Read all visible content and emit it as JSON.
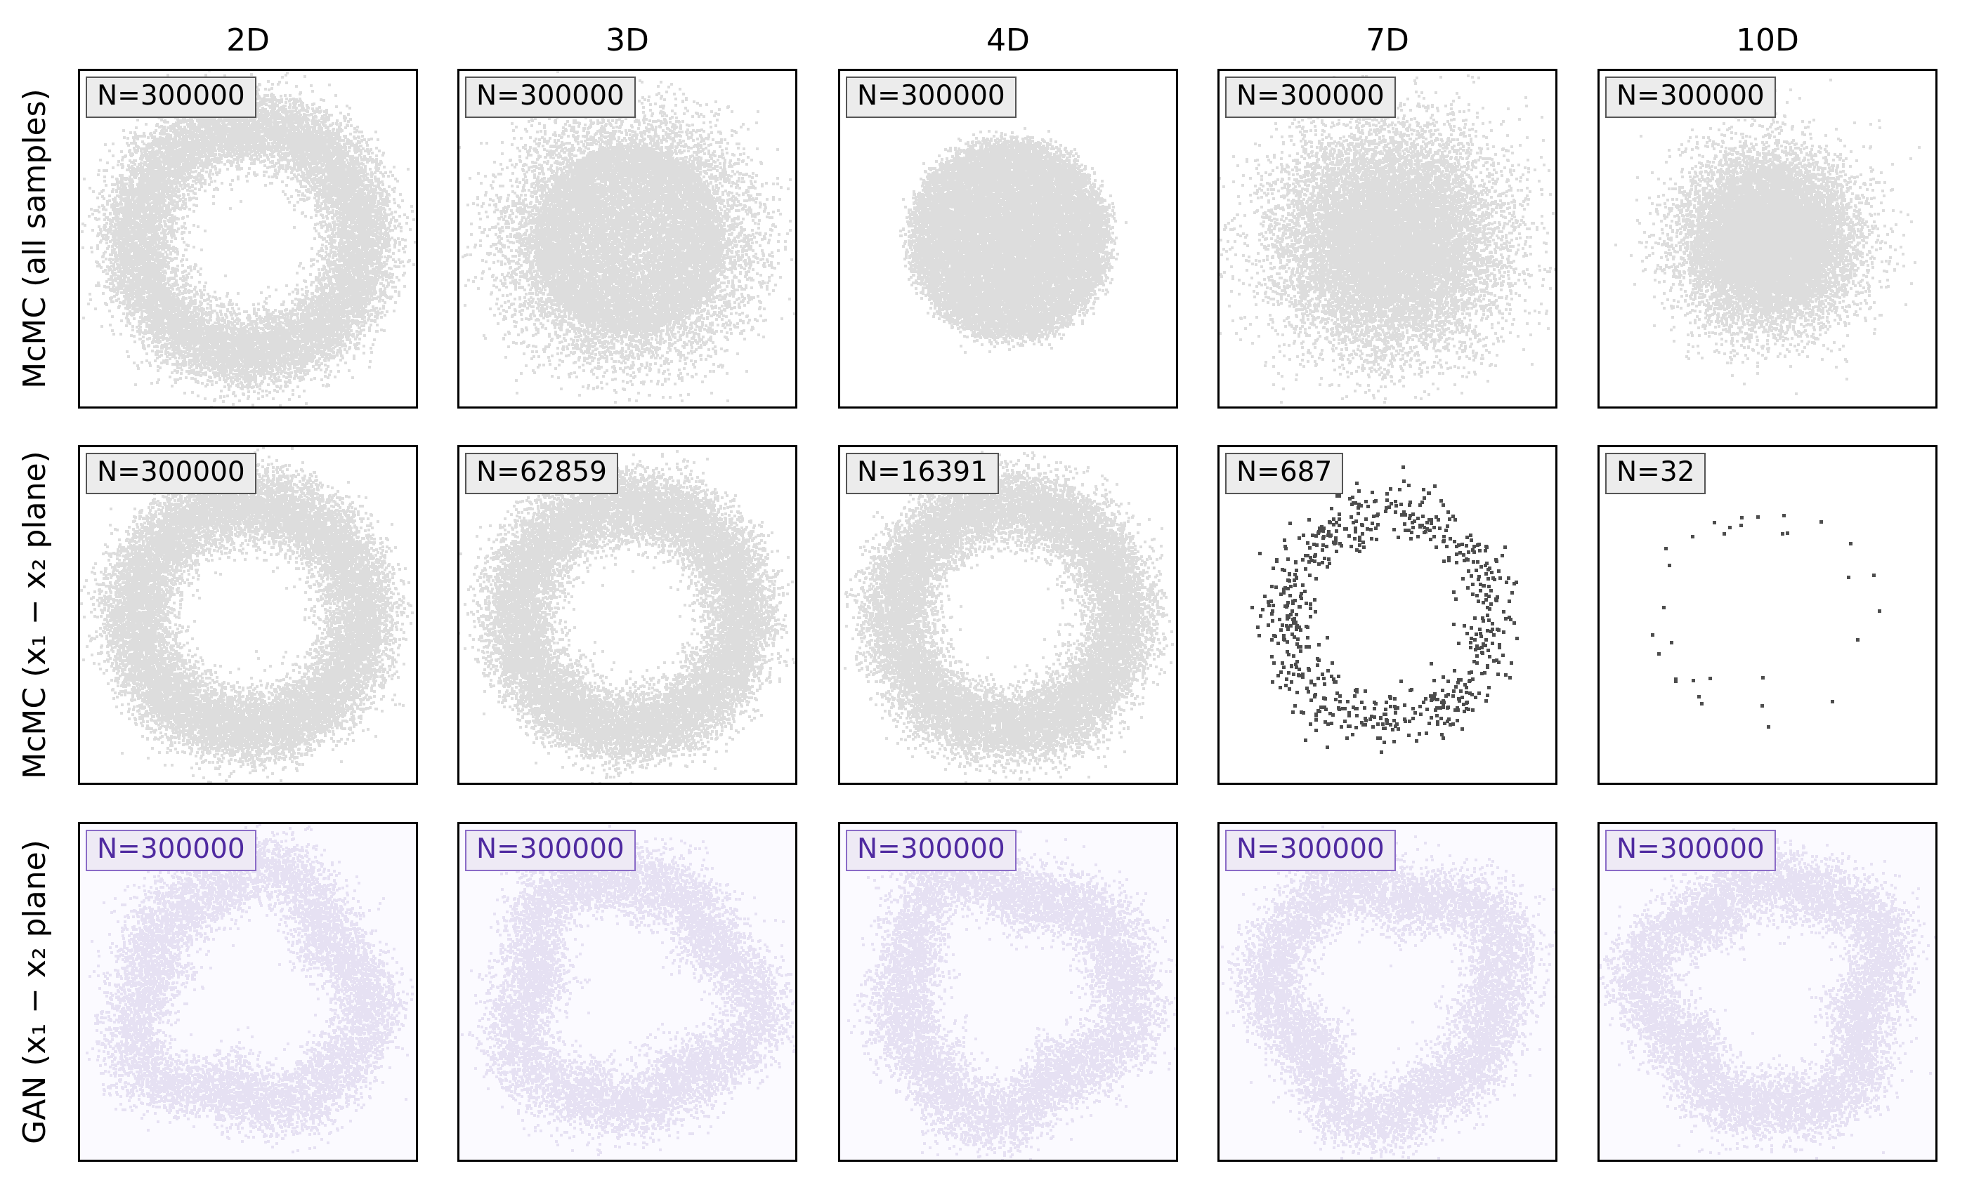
{
  "chart_data": {
    "type": "heatmap",
    "columns": [
      "2D",
      "3D",
      "4D",
      "7D",
      "10D"
    ],
    "rows": [
      {
        "label": "McMC (all samples)",
        "colormap": "Greys",
        "N": [
          "N=300000",
          "N=300000",
          "N=300000",
          "N=300000",
          "N=300000"
        ],
        "distribution": [
          "ring",
          "ring-filled",
          "disk",
          "blob",
          "blob"
        ]
      },
      {
        "label": "McMC (x₁ − x₂ plane)",
        "colormap": "Greys",
        "N": [
          "N=300000",
          "N=62859",
          "N=16391",
          "N=687",
          "N=32"
        ],
        "distribution": [
          "ring",
          "ring",
          "ring",
          "ring-sparse",
          "ring-sparse"
        ]
      },
      {
        "label": "GAN (x₁ − x₂ plane)",
        "colormap": "Purples",
        "N": [
          "N=300000",
          "N=300000",
          "N=300000",
          "N=300000",
          "N=300000"
        ],
        "distribution": [
          "ring",
          "ring",
          "ring",
          "ring",
          "ring"
        ]
      }
    ],
    "legend": "top-left"
  }
}
